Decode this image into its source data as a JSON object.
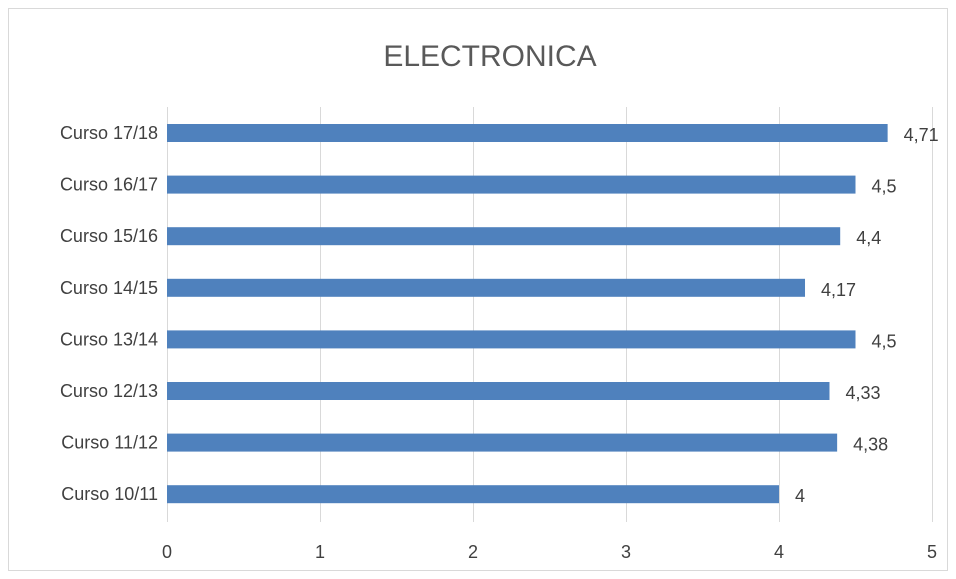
{
  "chart_data": {
    "type": "bar",
    "orientation": "horizontal",
    "title": "ELECTRONICA",
    "categories": [
      "Curso 17/18",
      "Curso 16/17",
      "Curso 15/16",
      "Curso 14/15",
      "Curso 13/14",
      "Curso 12/13",
      "Curso 11/12",
      "Curso 10/11"
    ],
    "values": [
      4.71,
      4.5,
      4.4,
      4.17,
      4.5,
      4.33,
      4.38,
      4
    ],
    "data_labels": [
      "4,71",
      "4,5",
      "4,4",
      "4,17",
      "4,5",
      "4,33",
      "4,38",
      "4"
    ],
    "xlim": [
      0,
      5
    ],
    "xticks": [
      0,
      1,
      2,
      3,
      4,
      5
    ],
    "xtick_labels": [
      "0",
      "1",
      "2",
      "3",
      "4",
      "5"
    ],
    "grid": "vertical",
    "bar_color": "#4f81bd",
    "legend": "none"
  }
}
